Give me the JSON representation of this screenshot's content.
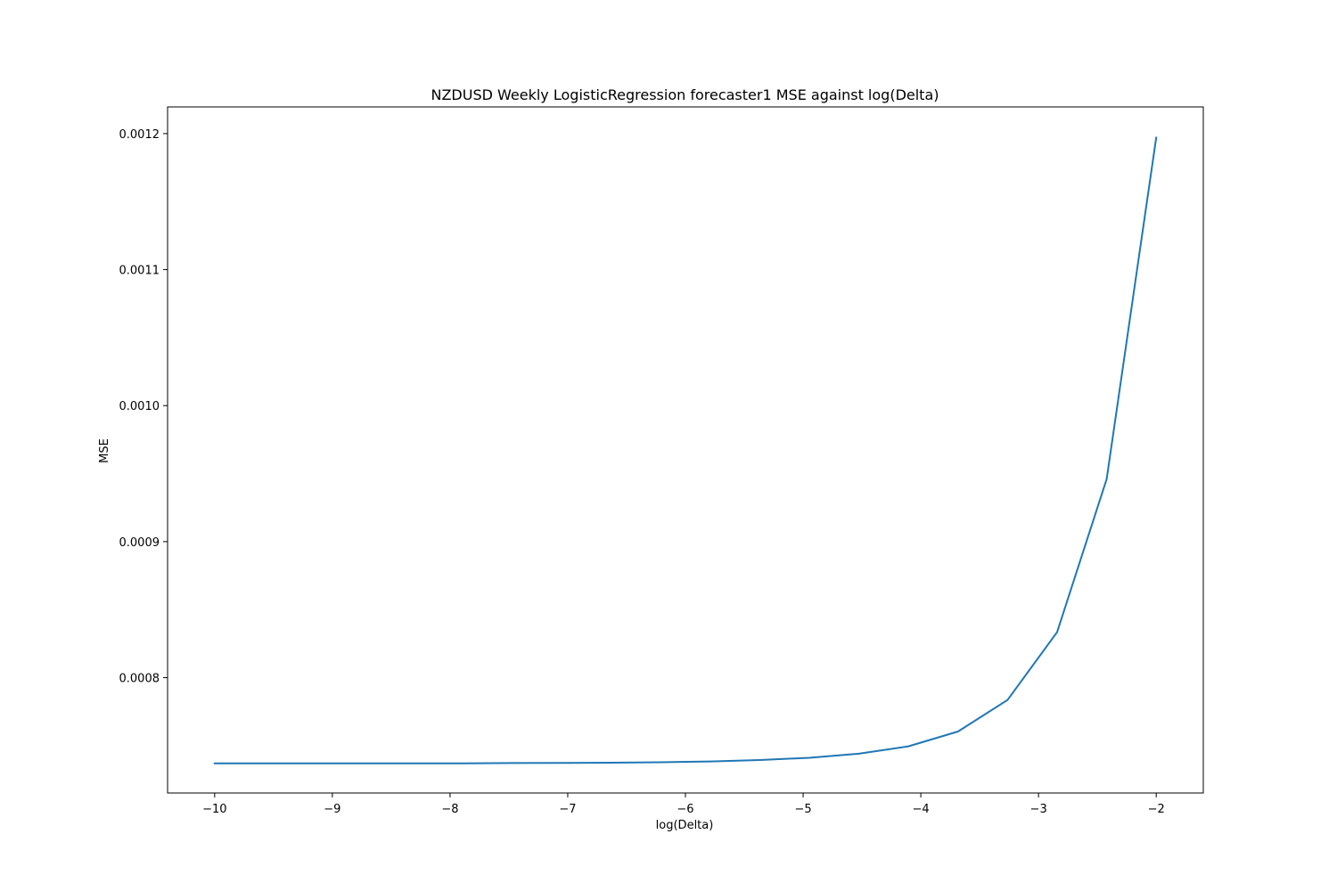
{
  "chart_data": {
    "type": "line",
    "title": "NZDUSD Weekly LogisticRegression forecaster1 MSE against log(Delta)",
    "xlabel": "log(Delta)",
    "ylabel": "MSE",
    "xlim": [
      -10.4,
      -1.6
    ],
    "ylim": [
      0.0007152,
      0.0012196
    ],
    "grid": false,
    "legend": "none",
    "line_color": "#1f77b4",
    "xticks": [
      {
        "value": -10,
        "label": "−10"
      },
      {
        "value": -9,
        "label": "−9"
      },
      {
        "value": -8,
        "label": "−8"
      },
      {
        "value": -7,
        "label": "−7"
      },
      {
        "value": -6,
        "label": "−6"
      },
      {
        "value": -5,
        "label": "−5"
      },
      {
        "value": -4,
        "label": "−4"
      },
      {
        "value": -3,
        "label": "−3"
      },
      {
        "value": -2,
        "label": "−2"
      }
    ],
    "yticks": [
      {
        "value": 0.0008,
        "label": "0.0008"
      },
      {
        "value": 0.0009,
        "label": "0.0009"
      },
      {
        "value": 0.001,
        "label": "0.0010"
      },
      {
        "value": 0.0011,
        "label": "0.0011"
      },
      {
        "value": 0.0012,
        "label": "0.0012"
      }
    ],
    "series": [
      {
        "x": [
          -10,
          -9.579,
          -9.158,
          -8.737,
          -8.316,
          -7.895,
          -7.474,
          -7.053,
          -6.632,
          -6.211,
          -5.789,
          -5.368,
          -4.947,
          -4.526,
          -4.105,
          -3.684,
          -3.263,
          -2.842,
          -2.421,
          -2
        ],
        "y": [
          0.000737,
          0.000737,
          0.000737,
          0.000737,
          0.000737,
          0.000737,
          0.0007372,
          0.0007373,
          0.0007375,
          0.0007378,
          0.0007384,
          0.0007394,
          0.0007411,
          0.0007441,
          0.0007495,
          0.0007604,
          0.0007836,
          0.0008335,
          0.000946,
          0.001197
        ]
      }
    ]
  }
}
